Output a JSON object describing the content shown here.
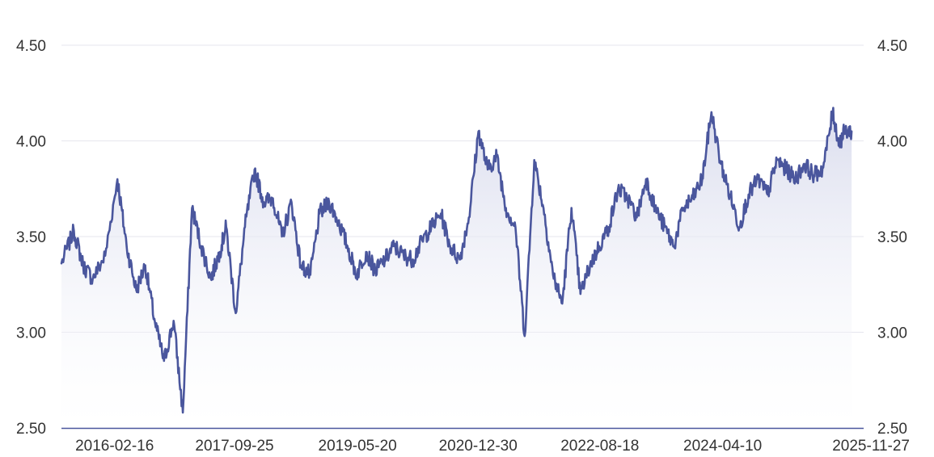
{
  "chart_data": {
    "type": "area",
    "title": "",
    "xlabel": "",
    "ylabel": "",
    "x_ticks": [
      "2016-02-16",
      "2017-09-25",
      "2019-05-20",
      "2020-12-30",
      "2022-08-18",
      "2024-04-10",
      "2025-11-27"
    ],
    "y_ticks": [
      "2.50",
      "3.00",
      "3.50",
      "4.00",
      "4.50"
    ],
    "ylim": [
      2.5,
      4.5
    ],
    "xlim": [
      "2015-06-01",
      "2026-03-01"
    ],
    "grid": true,
    "legend": "none",
    "colors": {
      "line": "#4a569d",
      "fill_top": "#d6d9ec",
      "fill_bottom": "#ffffff",
      "grid": "#e6e6ee",
      "axis": "#4a569d",
      "text": "#333333"
    },
    "series": [
      {
        "x": [
          "2015-06-01",
          "2015-08-01",
          "2015-09-15",
          "2015-11-01",
          "2016-01-01",
          "2016-03-01",
          "2016-04-15",
          "2016-06-01",
          "2016-07-15",
          "2016-09-01",
          "2016-10-15",
          "2016-12-01",
          "2017-01-15",
          "2017-03-01",
          "2017-04-15",
          "2017-06-01",
          "2017-07-15",
          "2017-08-15",
          "2017-10-01",
          "2017-11-15",
          "2018-01-01",
          "2018-02-15",
          "2018-04-01",
          "2018-05-15",
          "2018-07-01",
          "2018-08-15",
          "2018-10-01",
          "2018-11-15",
          "2019-01-01",
          "2019-02-15",
          "2019-04-01",
          "2019-05-15",
          "2019-07-01",
          "2019-08-15",
          "2019-10-01",
          "2019-11-15",
          "2020-01-01",
          "2020-02-15",
          "2020-04-01",
          "2020-05-15",
          "2020-07-01",
          "2020-08-15",
          "2020-10-01",
          "2020-11-15",
          "2021-01-01",
          "2021-02-15",
          "2021-04-01",
          "2021-05-15",
          "2021-07-01",
          "2021-08-15",
          "2021-10-01",
          "2021-11-15",
          "2022-01-01",
          "2022-02-15",
          "2022-04-01",
          "2022-05-15",
          "2022-07-01",
          "2022-08-15",
          "2022-10-01",
          "2022-11-15",
          "2023-01-01",
          "2023-02-15",
          "2023-04-01",
          "2023-05-15",
          "2023-07-01",
          "2023-08-15",
          "2023-10-01",
          "2023-11-15",
          "2024-01-01",
          "2024-02-15",
          "2024-04-01",
          "2024-05-15",
          "2024-07-01",
          "2024-08-15",
          "2024-10-01",
          "2024-11-15",
          "2025-01-01",
          "2025-02-15",
          "2025-04-01",
          "2025-05-15",
          "2025-07-01",
          "2025-08-15",
          "2025-10-01",
          "2025-11-01",
          "2025-11-27",
          "2026-01-01"
        ],
        "values": [
          3.36,
          3.53,
          3.35,
          3.28,
          3.4,
          3.8,
          3.45,
          3.22,
          3.35,
          3.05,
          2.85,
          3.06,
          2.58,
          3.65,
          3.45,
          3.28,
          3.42,
          3.55,
          3.1,
          3.55,
          3.85,
          3.68,
          3.7,
          3.5,
          3.68,
          3.35,
          3.3,
          3.62,
          3.68,
          3.58,
          3.45,
          3.3,
          3.42,
          3.32,
          3.38,
          3.45,
          3.4,
          3.38,
          3.48,
          3.55,
          3.62,
          3.45,
          3.38,
          3.6,
          4.05,
          3.85,
          3.92,
          3.65,
          3.55,
          2.98,
          3.9,
          3.65,
          3.3,
          3.15,
          3.65,
          3.2,
          3.35,
          3.45,
          3.55,
          3.75,
          3.7,
          3.6,
          3.8,
          3.65,
          3.55,
          3.45,
          3.65,
          3.7,
          3.8,
          4.15,
          3.88,
          3.72,
          3.55,
          3.72,
          3.8,
          3.72,
          3.9,
          3.85,
          3.8,
          3.88,
          3.82,
          3.86,
          4.15,
          3.98,
          4.05,
          4.05
        ]
      }
    ]
  }
}
